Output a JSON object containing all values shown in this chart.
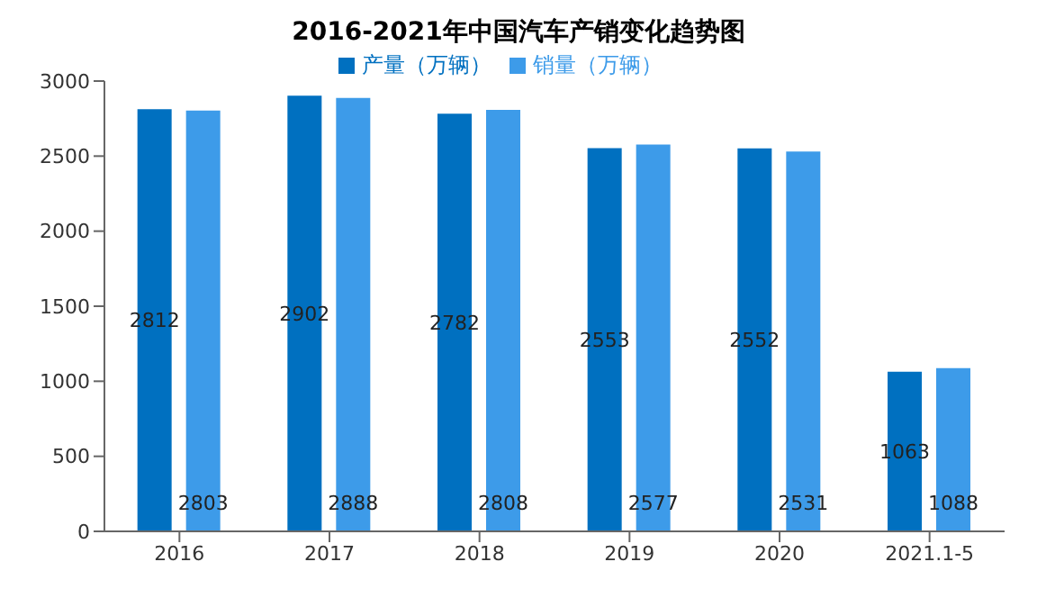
{
  "chart_data": {
    "type": "bar",
    "title": "2016-2021年中国汽车产销变化趋势图",
    "categories": [
      "2016",
      "2017",
      "2018",
      "2019",
      "2020",
      "2021.1-5"
    ],
    "series": [
      {
        "name": "产量（万辆）",
        "color": "#0070c0",
        "values": [
          2812,
          2902,
          2782,
          2553,
          2552,
          1063
        ]
      },
      {
        "name": "销量（万辆）",
        "color": "#3d9be9",
        "values": [
          2803,
          2888,
          2808,
          2577,
          2531,
          1088
        ]
      }
    ],
    "ylim": [
      0,
      3000
    ],
    "yticks": [
      0,
      500,
      1000,
      1500,
      2000,
      2500,
      3000
    ],
    "grid": false,
    "legend": "top",
    "data_labels": true
  }
}
